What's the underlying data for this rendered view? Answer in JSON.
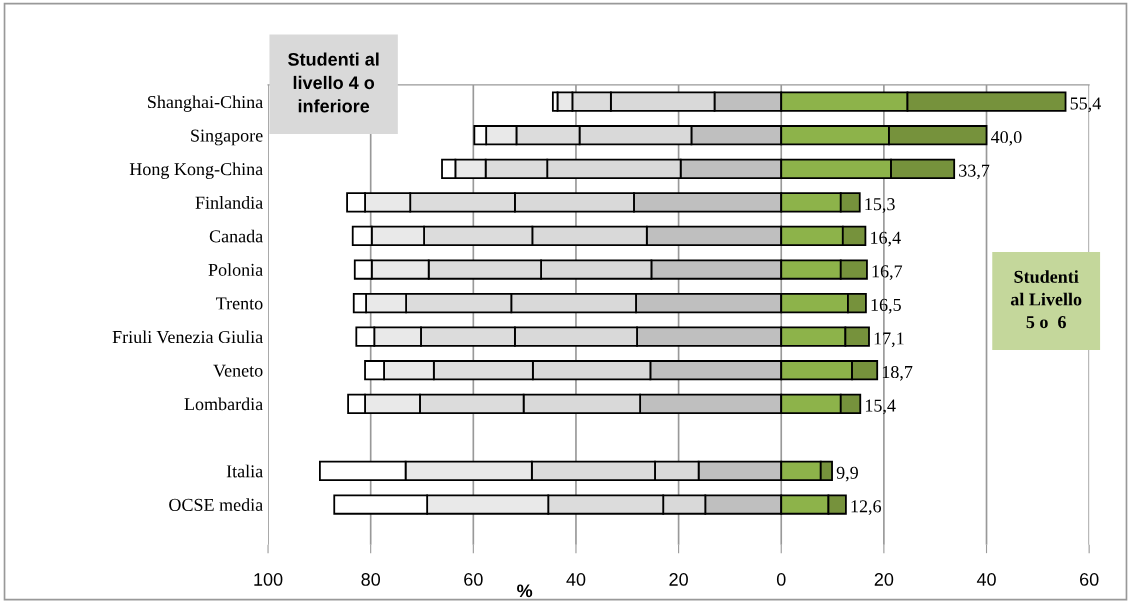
{
  "chart_data": {
    "type": "bar",
    "orientation": "horizontal",
    "stacked": true,
    "xlabel": "%",
    "categories": [
      "Shanghai-China",
      "Singapore",
      "Hong Kong-China",
      "Finlandia",
      "Canada",
      "Polonia",
      "Trento",
      "Friuli Venezia Giulia",
      "Veneto",
      "Lombardia",
      null,
      "Italia",
      "OCSE media"
    ],
    "series": [
      {
        "color": "#bfbfbf",
        "values": [
          -13.0,
          -17.5,
          -19.6,
          -28.7,
          -26.2,
          -25.3,
          -28.3,
          -28.1,
          -25.5,
          -27.5,
          null,
          -16.1,
          -14.8
        ]
      },
      {
        "color": "#d9d9d9",
        "values": [
          -20.2,
          -21.8,
          -26.0,
          -23.2,
          -22.3,
          -21.5,
          -24.3,
          -23.8,
          -22.9,
          -22.7,
          null,
          -8.5,
          -8.2
        ]
      },
      {
        "color": "#dcdcdc",
        "values": [
          -7.5,
          -12.3,
          -12.0,
          -20.4,
          -21.1,
          -21.9,
          -20.5,
          -18.3,
          -19.3,
          -20.2,
          null,
          -24.0,
          -22.4
        ]
      },
      {
        "color": "#e9e9e9",
        "values": [
          -2.9,
          -5.9,
          -5.9,
          -8.8,
          -10.2,
          -11.1,
          -7.8,
          -9.1,
          -9.7,
          -10.7,
          null,
          -24.6,
          -23.6
        ]
      },
      {
        "color": "#ffffff",
        "values": [
          -0.9,
          -2.3,
          -2.6,
          -3.5,
          -3.7,
          -3.3,
          -2.4,
          -3.5,
          -3.7,
          -3.3,
          null,
          -16.7,
          -18.1
        ]
      },
      {
        "color": "#8db34a",
        "values": [
          24.6,
          21.0,
          21.4,
          11.6,
          12.0,
          11.6,
          13.0,
          12.5,
          13.8,
          11.6,
          null,
          7.7,
          9.2
        ]
      },
      {
        "color": "#76923c",
        "values": [
          30.8,
          19.0,
          12.3,
          3.7,
          4.4,
          5.1,
          3.5,
          4.6,
          4.9,
          3.8,
          null,
          2.2,
          3.4
        ]
      }
    ],
    "xlim": [
      -100,
      60
    ],
    "xticks": [
      {
        "value": -100,
        "label": "100"
      },
      {
        "value": -80,
        "label": "80"
      },
      {
        "value": -60,
        "label": "60"
      },
      {
        "value": -40,
        "label": "40"
      },
      {
        "value": -20,
        "label": "20"
      },
      0,
      20,
      40,
      60
    ],
    "grid": "x",
    "annotations": [
      "Studenti al\nlivello 4 o\ninferiore",
      "Studenti\nal Livello\n5 o  6",
      {
        "text": "55,4",
        "x": 55.4,
        "y": "Shanghai-China"
      },
      {
        "text": "40,0",
        "x": 40.0,
        "y": "Singapore"
      },
      {
        "text": "33,7",
        "x": 33.7,
        "y": "Hong Kong-China"
      },
      {
        "text": "15,3",
        "x": 15.3,
        "y": "Finlandia"
      },
      {
        "text": "16,4",
        "x": 16.4,
        "y": "Canada"
      },
      {
        "text": "16,7",
        "x": 16.7,
        "y": "Polonia"
      },
      {
        "text": "16,5",
        "x": 16.5,
        "y": "Trento"
      },
      {
        "text": "17,1",
        "x": 17.1,
        "y": "Friuli Venezia Giulia"
      },
      {
        "text": "18,7",
        "x": 18.7,
        "y": "Veneto"
      },
      {
        "text": "15,4",
        "x": 15.4,
        "y": "Lombardia"
      },
      {
        "text": "9,9",
        "x": 9.9,
        "y": "Italia"
      },
      {
        "text": "12,6",
        "x": 12.6,
        "y": "OCSE media"
      }
    ]
  }
}
